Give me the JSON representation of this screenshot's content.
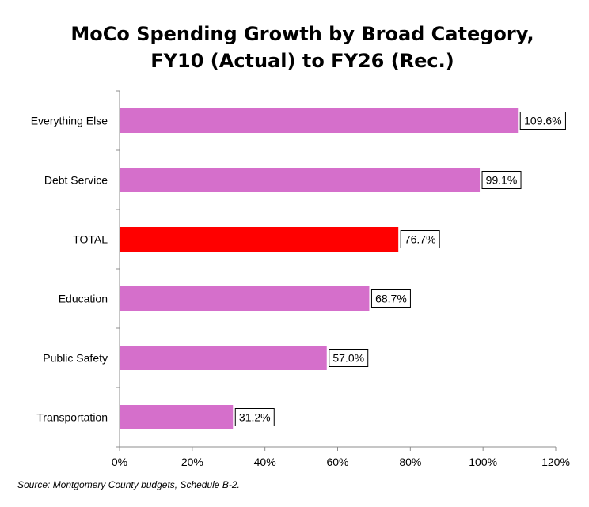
{
  "chart_data": {
    "type": "bar",
    "orientation": "horizontal",
    "title_lines": [
      "MoCo Spending Growth by Broad Category,",
      "FY10 (Actual) to FY26 (Rec.)"
    ],
    "categories": [
      "Everything Else",
      "Debt Service",
      "TOTAL",
      "Education",
      "Public Safety",
      "Transportation"
    ],
    "values": [
      109.6,
      99.1,
      76.7,
      68.7,
      57.0,
      31.2
    ],
    "data_labels": [
      "109.6%",
      "99.1%",
      "76.7%",
      "68.7%",
      "57.0%",
      "31.2%"
    ],
    "highlight_category": "TOTAL",
    "xlim": [
      0,
      120
    ],
    "xticks": [
      0,
      20,
      40,
      60,
      80,
      100,
      120
    ],
    "xtick_labels": [
      "0%",
      "20%",
      "40%",
      "60%",
      "80%",
      "100%",
      "120%"
    ],
    "grid": false,
    "colors": {
      "bar": "#d56fcb",
      "highlight": "#ff0000",
      "axis": "#8c8c8c"
    }
  },
  "source_note": "Source: Montgomery County budgets, Schedule B-2."
}
